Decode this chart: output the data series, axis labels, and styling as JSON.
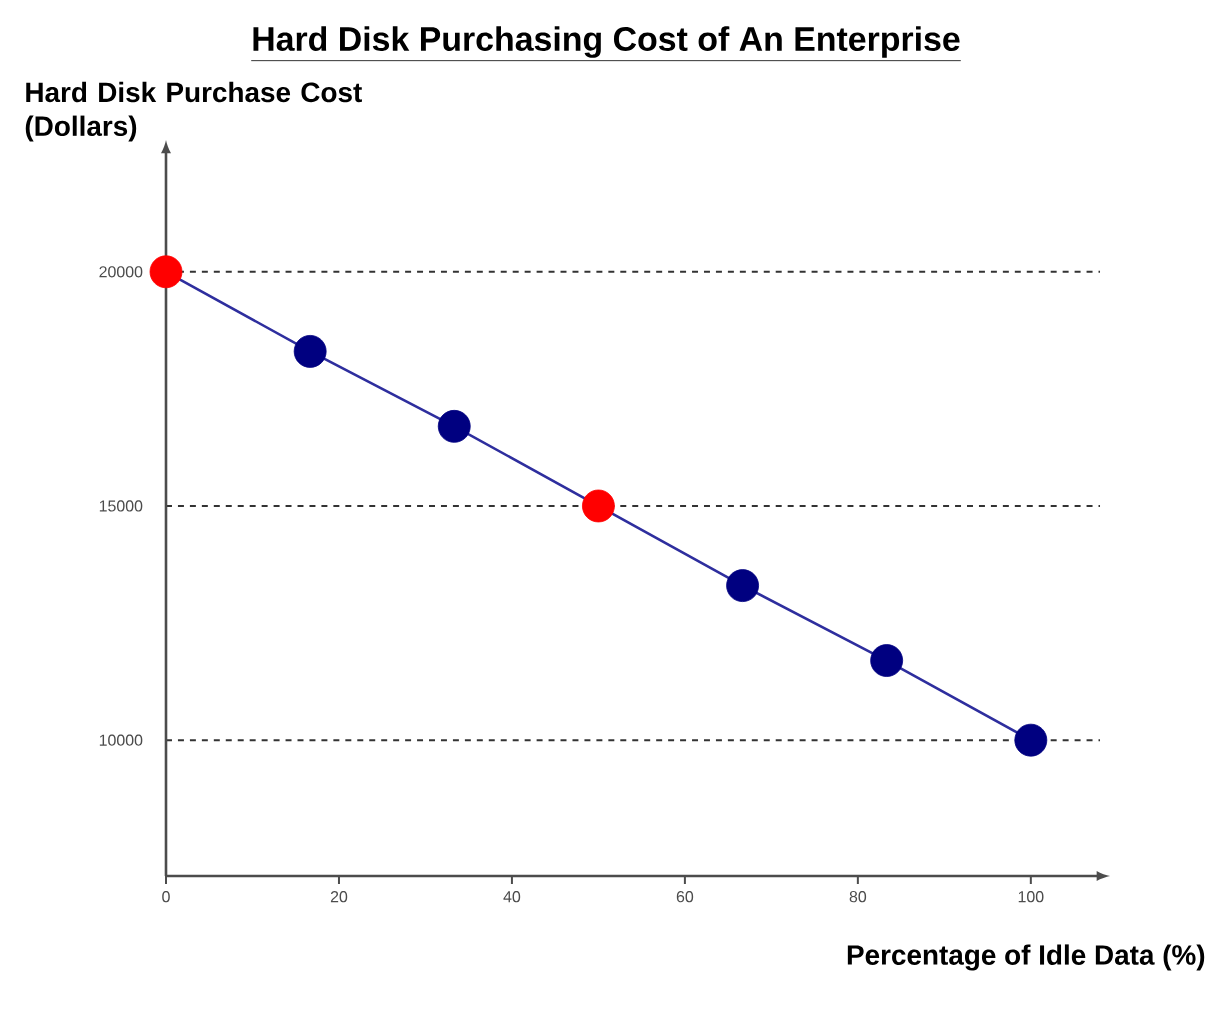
{
  "chart_data": {
    "type": "line",
    "title": "Hard Disk Purchasing Cost of An Enterprise",
    "xlabel": "Percentage of Idle Data (%)",
    "ylabel": "Hard Disk Purchase Cost (Dollars)",
    "x": [
      0,
      16.67,
      33.33,
      50,
      66.67,
      83.33,
      100
    ],
    "series": [
      {
        "color": "#2e2e9e",
        "values": [
          20000,
          18300,
          16700,
          15000,
          13300,
          11700,
          10000
        ],
        "colors": [
          "#ff0000",
          "#000080",
          "#000080",
          "#ff0000",
          "#000080",
          "#000080",
          "#000080"
        ]
      }
    ],
    "xlim": [
      0,
      108
    ],
    "ylim": [
      7100,
      22600
    ],
    "xticks": [
      0,
      20,
      40,
      60,
      80,
      100
    ],
    "yticks": [
      10000,
      15000,
      20000
    ],
    "grid": "y",
    "marker": "circle",
    "line_style": "solid"
  }
}
